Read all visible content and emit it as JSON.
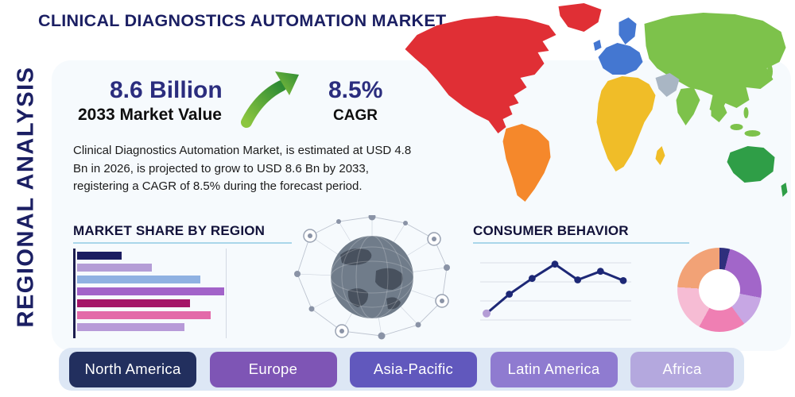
{
  "header": {
    "title": "CLINICAL DIAGNOSTICS AUTOMATION MARKET",
    "side_label": "REGIONAL ANALYSIS"
  },
  "stats": {
    "market_value": "8.6 Billion",
    "market_value_caption": "2033 Market Value",
    "cagr_value": "8.5%",
    "cagr_caption": "CAGR",
    "description": "Clinical Diagnostics Automation Market, is estimated at USD 4.8 Bn in 2026, is projected to grow to USD 8.6 Bn by 2033, registering a CAGR of 8.5% during the forecast period."
  },
  "sections": {
    "market_share_heading": "MARKET SHARE BY REGION",
    "consumer_behavior_heading": "CONSUMER BEHAVIOR"
  },
  "icons": {
    "growth_arrow": "up-right-growth-arrow",
    "globe_network": "connected-globe-network-graphic",
    "world_map": "colored-continents-world-map"
  },
  "chart_data": [
    {
      "id": "market_share_bars",
      "type": "bar",
      "orientation": "horizontal",
      "title": "MARKET SHARE BY REGION",
      "note": "bars are unlabeled in the image; values are relative lengths (max = 100)",
      "values": [
        30,
        51,
        84,
        100,
        77,
        91,
        73
      ],
      "colors": [
        "#1b1c60",
        "#b49dd6",
        "#8fb1e2",
        "#a263c9",
        "#a41568",
        "#e36aa9",
        "#b79ad8"
      ],
      "grid": true
    },
    {
      "id": "consumer_behavior_line",
      "type": "line",
      "title": "CONSUMER BEHAVIOR",
      "x": [
        1,
        2,
        3,
        4,
        5,
        6,
        7
      ],
      "y": [
        18,
        45,
        67,
        87,
        65,
        77,
        64
      ],
      "ylim": [
        0,
        100
      ],
      "grid": true,
      "line_color": "#1d2876",
      "first_point_color": "#b49dd6"
    },
    {
      "id": "regional_donut",
      "type": "pie",
      "donut": true,
      "note": "slices are unlabeled in the image; values estimated from arc angles",
      "slices": [
        {
          "label": "navy",
          "value": 4,
          "color": "#2f2f7d"
        },
        {
          "label": "violet",
          "value": 24,
          "color": "#a266c9"
        },
        {
          "label": "lilac",
          "value": 12,
          "color": "#c7a7e4"
        },
        {
          "label": "pink",
          "value": 18,
          "color": "#ef7fb3"
        },
        {
          "label": "pale-pink",
          "value": 18,
          "color": "#f6bcd4"
        },
        {
          "label": "salmon",
          "value": 24,
          "color": "#f2a276"
        }
      ]
    }
  ],
  "regions": [
    {
      "label": "North America",
      "color": "#222f5e"
    },
    {
      "label": "Europe",
      "color": "#7e55b5"
    },
    {
      "label": "Asia-Pacific",
      "color": "#6158bd"
    },
    {
      "label": "Latin America",
      "color": "#8f7bd0"
    },
    {
      "label": "Africa",
      "color": "#b4a8de"
    }
  ],
  "map": {
    "continent_colors": {
      "north_america": "#e02f35",
      "greenland": "#e02f35",
      "south_america": "#f5882b",
      "europe": "#4477d1",
      "africa": "#f0bd28",
      "middle_east": "#a9b6c4",
      "asia": "#7dc24b",
      "australia": "#2f9e47",
      "islands": "#7dc24b"
    }
  },
  "theme": {
    "navy": "#1b1f63",
    "heading_ink": "#12123a",
    "heading_underline": "#a9d6ea",
    "panel_bg": "#f6fafd",
    "bottom_bar_bg": "#dde7f5",
    "arrow_green_light": "#8cc63f",
    "arrow_green_dark": "#2e8b34"
  }
}
